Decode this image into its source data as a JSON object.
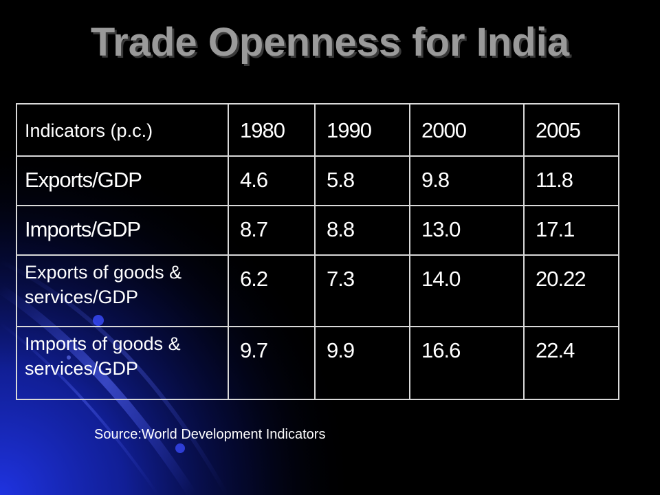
{
  "slide": {
    "title": "Trade Openness for India",
    "source": "Source:World Development Indicators",
    "colors": {
      "background": "#000000",
      "title": "#9a9a9a",
      "text": "#ffffff",
      "table_border": "#d9d9d9",
      "accent_blue": "#1a2bd6"
    }
  },
  "table": {
    "header": {
      "label": "Indicators  (p.c.)",
      "years": [
        "1980",
        "1990",
        "2000",
        "2005"
      ]
    },
    "rows": [
      {
        "label": "Exports/GDP",
        "values": [
          "4.6",
          "5.8",
          "9.8",
          "11.8"
        ]
      },
      {
        "label": "Imports/GDP",
        "values": [
          "8.7",
          "8.8",
          "13.0",
          "17.1"
        ]
      },
      {
        "label": "Exports of goods & services/GDP",
        "values": [
          "6.2",
          "7.3",
          "14.0",
          "20.22"
        ]
      },
      {
        "label": "Imports of goods & services/GDP",
        "values": [
          "9.7",
          "9.9",
          "16.6",
          "22.4"
        ]
      }
    ]
  }
}
